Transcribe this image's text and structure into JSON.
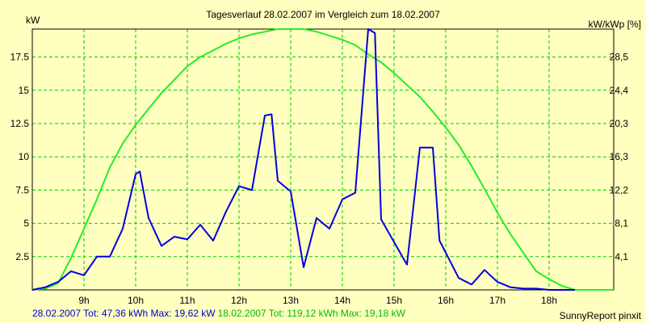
{
  "colors": {
    "background": "#ffffc0",
    "grid": "#00cc00",
    "series_a": "#0000e0",
    "series_b": "#22ee22",
    "axis": "#000000"
  },
  "footer": {
    "series_a_text": "28.02.2007 Tot: 47,36 kWh Max: 19,62 kW",
    "series_b_text": "18.02.2007 Tot: 119,12 kWh Max: 19,18 kW",
    "credit": "SunnyReport pinxit"
  },
  "chart_data": {
    "type": "line",
    "title": "Tagesverlauf 28.02.2007 im Vergleich zum 18.02.2007",
    "ylabel": "kW",
    "ylabel_right": "kW/kWp [%]",
    "xlim": [
      8.0,
      19.25
    ],
    "ylim": [
      0,
      19.6
    ],
    "x_ticks": [
      9,
      10,
      11,
      12,
      13,
      14,
      15,
      16,
      17,
      18
    ],
    "x_tick_labels": [
      "9h",
      "10h",
      "11h",
      "12h",
      "13h",
      "14h",
      "15h",
      "16h",
      "17h",
      "18h"
    ],
    "y_ticks": [
      2.5,
      5,
      7.5,
      10,
      12.5,
      15,
      17.5
    ],
    "y_tick_labels": [
      "2.5",
      "5",
      "7.5",
      "10",
      "12.5",
      "15",
      "17.5"
    ],
    "y2_tick_labels": [
      "4,1",
      "8,1",
      "12,2",
      "16,3",
      "20,3",
      "24,4",
      "28,5"
    ],
    "grid": true,
    "series": [
      {
        "name": "28.02.2007",
        "color": "#0000e0",
        "x": [
          8.0,
          8.25,
          8.5,
          8.75,
          9.0,
          9.25,
          9.5,
          9.75,
          10.0,
          10.08,
          10.25,
          10.5,
          10.75,
          11.0,
          11.25,
          11.5,
          11.75,
          12.0,
          12.25,
          12.5,
          12.63,
          12.75,
          13.0,
          13.25,
          13.5,
          13.75,
          14.0,
          14.25,
          14.5,
          14.63,
          14.75,
          15.0,
          15.25,
          15.5,
          15.75,
          15.88,
          16.0,
          16.25,
          16.5,
          16.75,
          17.0,
          17.25,
          17.5,
          17.75,
          18.0,
          18.25,
          18.5
        ],
        "y": [
          0.0,
          0.2,
          0.6,
          1.4,
          1.1,
          2.5,
          2.5,
          4.6,
          8.7,
          8.9,
          5.4,
          3.3,
          4.0,
          3.8,
          4.9,
          3.7,
          5.9,
          7.8,
          7.5,
          13.1,
          13.2,
          8.2,
          7.4,
          1.7,
          5.4,
          4.6,
          6.8,
          7.3,
          19.6,
          19.3,
          5.3,
          3.6,
          1.9,
          10.7,
          10.7,
          3.7,
          2.8,
          0.9,
          0.4,
          1.5,
          0.6,
          0.2,
          0.1,
          0.1,
          0.0,
          0.0,
          0.0
        ]
      },
      {
        "name": "18.02.2007",
        "color": "#22ee22",
        "x": [
          8.0,
          8.25,
          8.5,
          8.75,
          9.0,
          9.25,
          9.5,
          9.75,
          10.0,
          10.25,
          10.5,
          10.75,
          11.0,
          11.25,
          11.5,
          11.75,
          12.0,
          12.25,
          12.5,
          12.75,
          13.0,
          13.25,
          13.5,
          13.75,
          14.0,
          14.25,
          14.5,
          14.75,
          15.0,
          15.25,
          15.5,
          15.75,
          16.0,
          16.25,
          16.5,
          16.75,
          17.0,
          17.25,
          17.5,
          17.75,
          18.0,
          18.25,
          18.5,
          18.75,
          19.0,
          19.25
        ],
        "y": [
          0.0,
          0.1,
          0.5,
          2.4,
          4.6,
          6.8,
          9.2,
          11.0,
          12.4,
          13.6,
          14.8,
          15.8,
          16.8,
          17.5,
          18.0,
          18.5,
          18.9,
          19.2,
          19.4,
          19.6,
          19.6,
          19.6,
          19.4,
          19.1,
          18.8,
          18.4,
          17.7,
          17.1,
          16.3,
          15.4,
          14.5,
          13.4,
          12.2,
          10.9,
          9.3,
          7.6,
          5.8,
          4.2,
          2.8,
          1.4,
          0.8,
          0.3,
          0.0,
          0.0,
          0.0,
          0.0
        ]
      }
    ]
  }
}
